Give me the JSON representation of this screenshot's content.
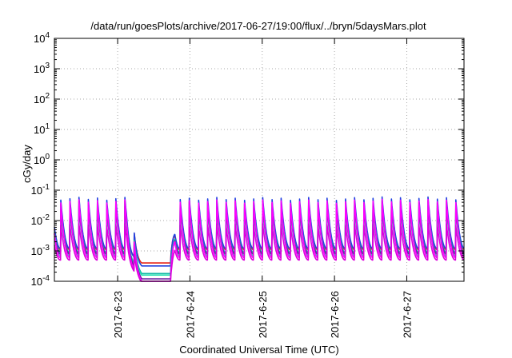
{
  "chart_data": {
    "type": "line",
    "title": "/data/run/goesPlots/archive/2017-06-27/19:00/flux/../bryn/5daysMars.plot",
    "xlabel": "Coordinated Universal Time (UTC)",
    "ylabel": "cGy/day",
    "y_scale": "log",
    "ylim": [
      0.0001,
      10000
    ],
    "xlim": [
      "2017-06-22T03:00",
      "2017-06-27T19:00"
    ],
    "x_ticks": [
      "2017-6-23",
      "2017-6-24",
      "2017-6-25",
      "2017-6-26",
      "2017-6-27"
    ],
    "y_ticks": [
      {
        "base": "10",
        "exp": "-4"
      },
      {
        "base": "10",
        "exp": "-3"
      },
      {
        "base": "10",
        "exp": "-2"
      },
      {
        "base": "10",
        "exp": "-1"
      },
      {
        "base": "10",
        "exp": "0"
      },
      {
        "base": "10",
        "exp": "1"
      },
      {
        "base": "10",
        "exp": "2"
      },
      {
        "base": "10",
        "exp": "3"
      },
      {
        "base": "10",
        "exp": "4"
      }
    ],
    "grid": true,
    "legend": false,
    "oscillation": {
      "period_hours": 3.05,
      "sharpness": 2.2,
      "phase_hours": 1.0
    },
    "gap": {
      "start": "2017-06-23T03:00",
      "end": "2017-06-23T19:00",
      "fall_hours": 5,
      "rise_hours": 1.2
    },
    "gap_recovery": {
      "start": "2017-06-23T17:30",
      "end": "2017-06-23T19:00"
    },
    "series": [
      {
        "color": "#e8271a",
        "peak": 0.045,
        "trough": 0.0011,
        "gap_level": 0.0004
      },
      {
        "color": "#1f3fe0",
        "peak": 0.06,
        "trough": 0.0012,
        "gap_level": 0.00032
      },
      {
        "color": "#14b8a6",
        "peak": 0.035,
        "trough": 0.0009,
        "gap_level": 0.00018
      },
      {
        "color": "#21e0b0",
        "peak": 0.025,
        "trough": 0.0007,
        "gap_level": 0.00016
      },
      {
        "color": "#6b1fa0",
        "peak": 0.03,
        "trough": 0.0008,
        "gap_level": 0.00012
      },
      {
        "color": "#ff00ff",
        "peak": 0.05,
        "trough": 0.0006,
        "gap_level": 0.0001
      },
      {
        "color": "#dd00dd",
        "peak": 0.008,
        "trough": 0.0005,
        "gap_level": 9e-05
      }
    ]
  }
}
